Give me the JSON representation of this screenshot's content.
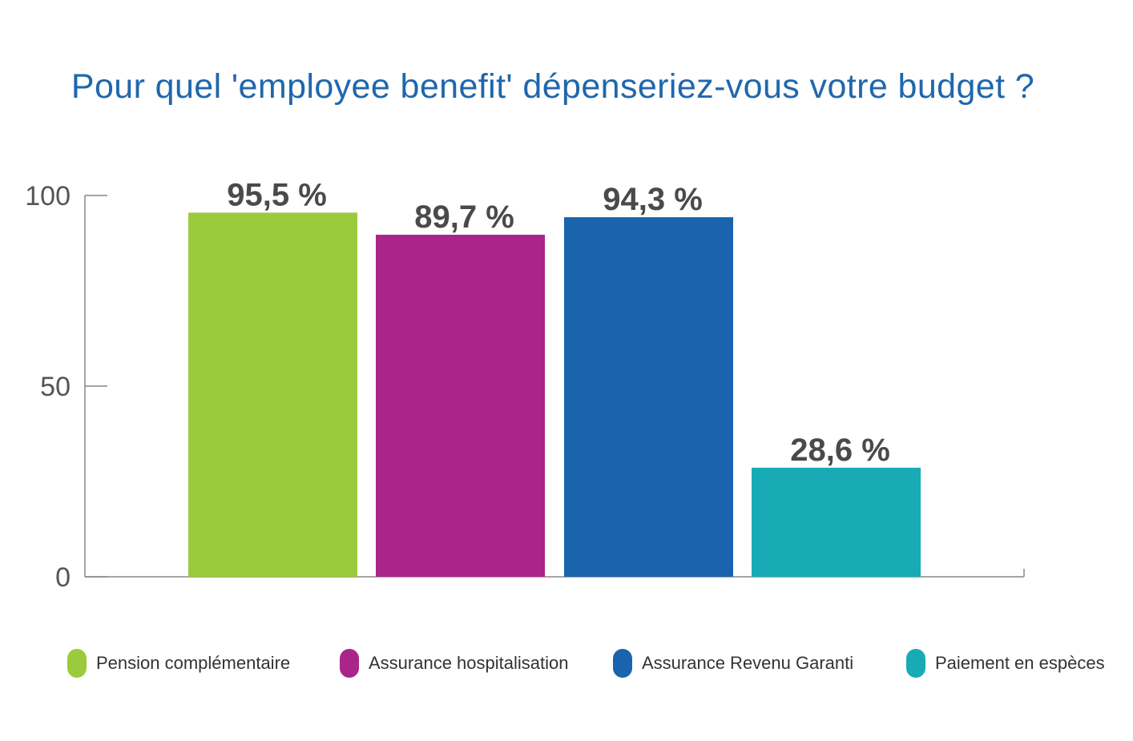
{
  "chart_data": {
    "type": "bar",
    "title": "Pour quel 'employee benefit' dépenseriez-vous votre budget ?",
    "xlabel": "",
    "ylabel": "",
    "ylim": [
      0,
      100
    ],
    "yticks": [
      "0",
      "50",
      "100"
    ],
    "categories": [
      "Pension complémentaire",
      "Assurance hospitalisation",
      "Assurance Revenu Garanti",
      "Paiement en espèces"
    ],
    "values": [
      95.5,
      89.7,
      94.3,
      28.6
    ],
    "value_labels": [
      "95,5 %",
      "89,7 %",
      "94,3 %",
      "28,6 %"
    ],
    "colors": [
      "#9acb3c",
      "#aa258a",
      "#1a63ad",
      "#18abb5"
    ],
    "grid": false,
    "legend_position": "bottom"
  }
}
